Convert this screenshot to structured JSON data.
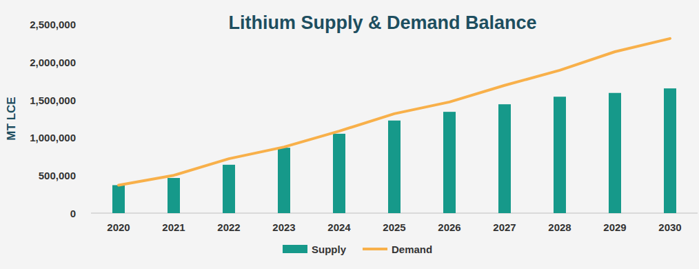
{
  "chart_data": {
    "type": "bar",
    "title": "Lithium Supply & Demand Balance",
    "y_label": "MT LCE",
    "categories": [
      "2020",
      "2021",
      "2022",
      "2023",
      "2024",
      "2025",
      "2026",
      "2027",
      "2028",
      "2029",
      "2030"
    ],
    "series": [
      {
        "name": "Supply",
        "type": "bar",
        "color": "#16998a",
        "values": [
          370000,
          465000,
          640000,
          865000,
          1050000,
          1225000,
          1340000,
          1440000,
          1540000,
          1590000,
          1650000
        ]
      },
      {
        "name": "Demand",
        "type": "line",
        "color": "#f8b04a",
        "values": [
          370000,
          500000,
          720000,
          875000,
          1085000,
          1315000,
          1470000,
          1690000,
          1890000,
          2135000,
          2310000
        ]
      }
    ],
    "ylim": [
      0,
      2500000
    ],
    "yticks": [
      0,
      {
        "value": 500000,
        "label": "500,000"
      },
      {
        "value": 1000000,
        "label": "1,000,000"
      },
      {
        "value": 1500000,
        "label": "1,500,000"
      },
      {
        "value": 2000000,
        "label": "2,000,000"
      },
      {
        "value": 2500000,
        "label": "2,500,000"
      }
    ],
    "grid": false,
    "legend": "bottom"
  }
}
